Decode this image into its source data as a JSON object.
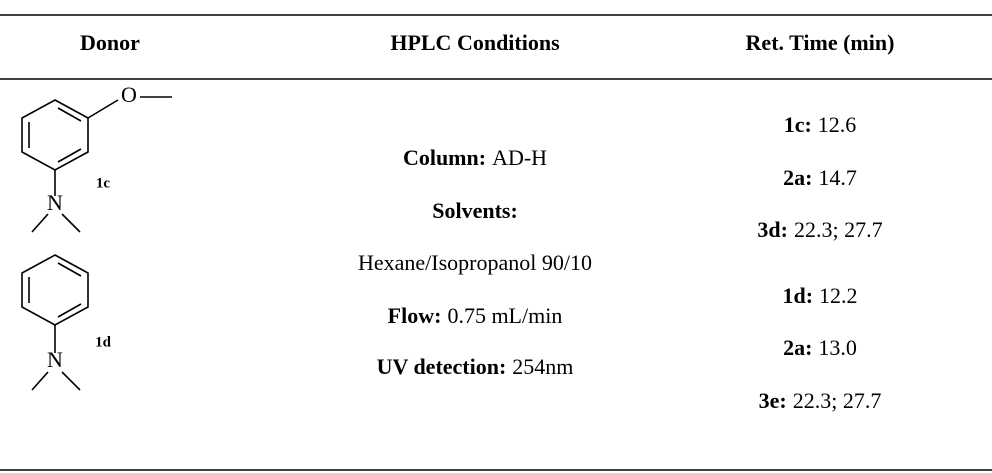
{
  "table": {
    "header": [
      "Donor",
      "HPLC Conditions",
      "Ret. Time (min)"
    ],
    "donors": [
      {
        "id": "1c",
        "atoms": [
          "O",
          "N"
        ]
      },
      {
        "id": "1d",
        "atoms": [
          "N"
        ]
      }
    ],
    "conditions": [
      {
        "label": "Column:",
        "value": "AD-H"
      },
      {
        "label": "Solvents:"
      },
      {
        "value": "Hexane/Isopropanol 90/10"
      },
      {
        "label": "Flow:",
        "value": "0.75 mL/min"
      },
      {
        "label": "UV detection:",
        "value": "254nm"
      }
    ],
    "retention": [
      [
        {
          "label": "1c:",
          "value": "12.6"
        },
        {
          "label": "2a:",
          "value": "14.7"
        },
        {
          "label": "3d:",
          "value": "22.3; 27.7"
        }
      ],
      [
        {
          "label": "1d:",
          "value": "12.2"
        },
        {
          "label": "2a:",
          "value": "13.0"
        },
        {
          "label": "3e:",
          "value": "22.3; 27.7"
        }
      ]
    ]
  }
}
